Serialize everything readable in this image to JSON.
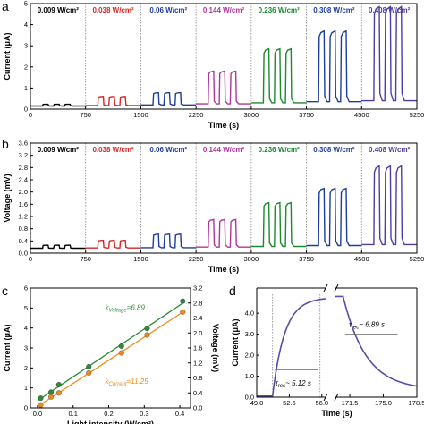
{
  "panels": {
    "a": {
      "letter": "a"
    },
    "b": {
      "letter": "b"
    },
    "c": {
      "letter": "c"
    },
    "d": {
      "letter": "d"
    }
  },
  "chart_data": [
    {
      "id": "a",
      "type": "line",
      "xlabel": "Time (s)",
      "ylabel": "Current (μA)",
      "xlim": [
        0,
        5250
      ],
      "ylim": [
        0,
        5
      ],
      "xticks": [
        0,
        750,
        1500,
        2250,
        3000,
        3750,
        4500,
        5250
      ],
      "yticks": [
        0,
        1,
        2,
        3,
        4,
        5
      ],
      "dividers": [
        750,
        1500,
        2250,
        3000,
        3750,
        4500
      ],
      "bands": [
        {
          "label": "0.009 W/cm²",
          "color": "#000000",
          "start": 0,
          "on": 0.23,
          "off": 0.15
        },
        {
          "label": "0.038 W/cm²",
          "color": "#d62728",
          "start": 750,
          "on": 0.6,
          "off": 0.17
        },
        {
          "label": "0.06 W/cm²",
          "color": "#1f3d99",
          "start": 1500,
          "on": 0.78,
          "off": 0.2
        },
        {
          "label": "0.144 W/cm²",
          "color": "#b0369a",
          "start": 2250,
          "on": 1.8,
          "off": 0.25
        },
        {
          "label": "0.236 W/cm²",
          "color": "#1a8a2e",
          "start": 3000,
          "on": 2.85,
          "off": 0.3
        },
        {
          "label": "0.308 W/cm²",
          "color": "#1f3d99",
          "start": 3750,
          "on": 3.7,
          "off": 0.35
        },
        {
          "label": "0.408 W/cm²",
          "color": "#4b3fa0",
          "start": 4500,
          "on": 4.85,
          "off": 0.4
        }
      ]
    },
    {
      "id": "b",
      "type": "line",
      "xlabel": "Time (s)",
      "ylabel": "Voltage (mV)",
      "xlim": [
        0,
        5250
      ],
      "ylim": [
        0,
        3.6
      ],
      "xticks": [
        0,
        750,
        1500,
        2250,
        3000,
        3750,
        4500,
        5250
      ],
      "yticks": [
        0,
        0.4,
        0.8,
        1.2,
        1.6,
        2.0,
        2.4,
        2.8,
        3.2,
        3.6
      ],
      "ytick_labels": [
        "0.0",
        "0.4",
        "0.8",
        "1.2",
        "1.6",
        "2.0",
        "2.4",
        "2.8",
        "3.2",
        "3.6"
      ],
      "dividers": [
        750,
        1500,
        2250,
        3000,
        3750,
        4500
      ],
      "bands": [
        {
          "label": "0.009  W/cm²",
          "color": "#000000",
          "start": 0,
          "on": 0.26,
          "off": 0.16
        },
        {
          "label": "0.038 W/cm²",
          "color": "#d62728",
          "start": 750,
          "on": 0.42,
          "off": 0.17
        },
        {
          "label": "0.06 W/cm²",
          "color": "#1f3d99",
          "start": 1500,
          "on": 0.62,
          "off": 0.18
        },
        {
          "label": "0.144 W/cm²",
          "color": "#b0369a",
          "start": 2250,
          "on": 1.1,
          "off": 0.2
        },
        {
          "label": "0.236 W/cm²",
          "color": "#1a8a2e",
          "start": 3000,
          "on": 1.65,
          "off": 0.22
        },
        {
          "label": "0.308 W/cm²",
          "color": "#1f3d99",
          "start": 3750,
          "on": 2.12,
          "off": 0.25
        },
        {
          "label": "0.408 W/cm²",
          "color": "#4b3fa0",
          "start": 4500,
          "on": 2.85,
          "off": 0.28
        }
      ]
    },
    {
      "id": "c",
      "type": "scatter",
      "xlabel": "Light intensity (W/cm²)",
      "ylabel_left": "Current (μA)",
      "ylabel_right": "Voltage (mV)",
      "xlim": [
        -0.02,
        0.43
      ],
      "ylim_left": [
        0,
        6
      ],
      "ylim_right": [
        0,
        3.2
      ],
      "xticks": [
        0,
        0.1,
        0.2,
        0.3,
        0.4
      ],
      "xtick_labels": [
        "0.0",
        "0.1",
        "0.2",
        "0.3",
        "0.4"
      ],
      "yticks_left": [
        0,
        1,
        2,
        3,
        4,
        5,
        6
      ],
      "yticks_right": [
        0,
        0.4,
        0.8,
        1.2,
        1.6,
        2.0,
        2.4,
        2.8,
        3.2
      ],
      "ytick_labels_right": [
        "0.0",
        "0.4",
        "0.8",
        "1.2",
        "1.6",
        "2.0",
        "2.4",
        "2.8",
        "3.2"
      ],
      "x": [
        0.009,
        0.038,
        0.06,
        0.144,
        0.236,
        0.308,
        0.408
      ],
      "series": [
        {
          "axis": "left",
          "color": "#f08a1c",
          "values": [
            0.15,
            0.55,
            0.75,
            1.75,
            2.75,
            3.65,
            4.8
          ]
        },
        {
          "axis": "right",
          "color": "#2e8b3a",
          "values": [
            0.26,
            0.42,
            0.62,
            1.1,
            1.65,
            2.12,
            2.85
          ]
        }
      ],
      "annotations": [
        {
          "k": "k",
          "sub": "Voltage",
          "value": "=6.89",
          "color": "#2e8b3a"
        },
        {
          "k": "k",
          "sub": "Current",
          "value": "=11.25",
          "color": "#f08a1c"
        }
      ],
      "left_label_color": "#f08a1c",
      "right_label_color": "#2e8b3a"
    },
    {
      "id": "d",
      "type": "line",
      "xlabel": "Time (s)",
      "ylabel": "Current (μA)",
      "xlim": [
        49.0,
        56.5
      ],
      "xlim_right": [
        170.0,
        178.5
      ],
      "ylim": [
        0,
        5.2
      ],
      "xticks": [
        49.0,
        52.5,
        56.0
      ],
      "xtick_labels": [
        "49.0",
        "52.5",
        "56.0"
      ],
      "xticks_right": [
        171.5,
        175.0,
        178.5
      ],
      "xtick_labels_right": [
        "171.5",
        "175.0",
        "178.5"
      ],
      "yticks": [
        0,
        1,
        2,
        3,
        4
      ],
      "ytick_labels": [
        "0.0",
        "1.0",
        "2.0",
        "3.0",
        "4.0"
      ],
      "color": "#5b4aa8",
      "rise": {
        "t0": 50.7,
        "tau": 1.3,
        "low": 0.05,
        "high": 4.75
      },
      "decay": {
        "t0": 170.8,
        "tau": 2.4,
        "low": 0.35,
        "high": 4.8
      },
      "annotations": [
        {
          "tau": "τ",
          "sub": "res",
          "value": "~ 5.12 s"
        },
        {
          "tau": "τ",
          "sub": "rec",
          "value": "~ 6.89 s"
        }
      ]
    }
  ]
}
